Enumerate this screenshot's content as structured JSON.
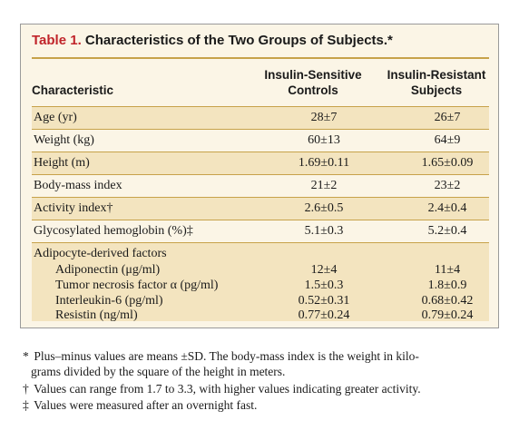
{
  "table": {
    "title_number": "Table 1.",
    "title_text": "Characteristics of the Two Groups of Subjects.*",
    "headers": {
      "col1": "Characteristic",
      "col2_line1": "Insulin-Sensitive",
      "col2_line2": "Controls",
      "col3_line1": "Insulin-Resistant",
      "col3_line2": "Subjects"
    },
    "rows": [
      {
        "label": "Age (yr)",
        "sensitive": "28±7",
        "resistant": "26±7"
      },
      {
        "label": "Weight (kg)",
        "sensitive": "60±13",
        "resistant": "64±9"
      },
      {
        "label": "Height (m)",
        "sensitive": "1.69±0.11",
        "resistant": "1.65±0.09"
      },
      {
        "label": "Body-mass index",
        "sensitive": "21±2",
        "resistant": "23±2"
      },
      {
        "label": "Activity index†",
        "sensitive": "2.6±0.5",
        "resistant": "2.4±0.4"
      },
      {
        "label": "Glycosylated hemoglobin (%)‡",
        "sensitive": "5.1±0.3",
        "resistant": "5.2±0.4"
      }
    ],
    "group_label": "Adipocyte-derived factors",
    "subrows": [
      {
        "label": "Adiponectin (μg/ml)",
        "sensitive": "12±4",
        "resistant": "11±4"
      },
      {
        "label": "Tumor necrosis factor α (pg/ml)",
        "sensitive": "1.5±0.3",
        "resistant": "1.8±0.9"
      },
      {
        "label": "Interleukin-6 (pg/ml)",
        "sensitive": "0.52±0.31",
        "resistant": "0.68±0.42"
      },
      {
        "label": "Resistin (ng/ml)",
        "sensitive": "0.77±0.24",
        "resistant": "0.79±0.24"
      }
    ]
  },
  "footnotes": [
    {
      "mark": "*",
      "line1": "Plus–minus values are means ±SD. The body-mass index is the weight in kilo-",
      "line2": "grams divided by the square of the height in meters."
    },
    {
      "mark": "†",
      "line1": "Values can range from 1.7 to 3.3, with higher values indicating greater activity."
    },
    {
      "mark": "‡",
      "line1": "Values were measured after an overnight fast."
    }
  ],
  "colors": {
    "title_number": "#c0242a",
    "background": "#fbf5e6",
    "row_shade": "#f3e4bf",
    "rule": "#c7a24a"
  }
}
